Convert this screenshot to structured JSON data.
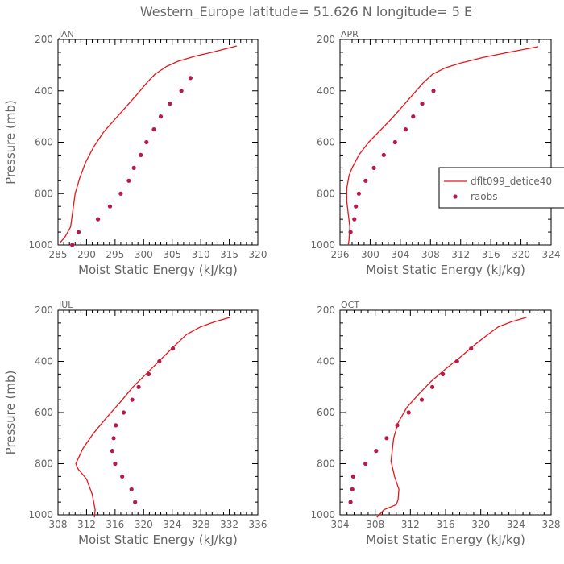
{
  "figure": {
    "title": "Western_Europe  latitude= 51.626 N longitude= 5 E",
    "colors": {
      "model": "#e8151a",
      "obs": "#b51c4a",
      "axes": "#000000",
      "text": "#666666"
    }
  },
  "legend": {
    "placement": "right of APR panel",
    "entries": [
      {
        "label": "dflt099_detice40",
        "style": "line"
      },
      {
        "label": "raobs",
        "style": "marker"
      }
    ]
  },
  "chart_data": [
    {
      "type": "line",
      "panel_label": "JAN",
      "xlabel": "Moist Static Energy (kJ/kg)",
      "ylabel": "Pressure (mb)",
      "xlim": [
        285,
        320
      ],
      "ylim": [
        1000,
        200
      ],
      "xticks": [
        285,
        290,
        295,
        300,
        305,
        310,
        315,
        320
      ],
      "yticks": [
        200,
        400,
        600,
        800,
        1000
      ],
      "series": [
        {
          "name": "dflt099_detice40",
          "style": "line",
          "x": [
            316.3,
            312,
            309,
            306,
            304,
            302,
            300.5,
            299,
            297,
            295,
            293,
            291.2,
            289.8,
            288.8,
            288,
            287.2,
            286.2,
            285.4
          ],
          "y": [
            225,
            250,
            265,
            285,
            305,
            335,
            370,
            410,
            460,
            510,
            560,
            620,
            680,
            740,
            800,
            930,
            970,
            990
          ]
        },
        {
          "name": "raobs",
          "style": "marker",
          "x": [
            308.2,
            306.6,
            304.6,
            303,
            301.8,
            300.5,
            299.5,
            298.3,
            297.4,
            296,
            294.1,
            292,
            288.6,
            287.5
          ],
          "y": [
            350,
            400,
            450,
            500,
            550,
            600,
            650,
            700,
            750,
            800,
            850,
            900,
            950,
            1000
          ]
        }
      ]
    },
    {
      "type": "line",
      "panel_label": "APR",
      "xlabel": "Moist Static Energy (kJ/kg)",
      "ylabel": "",
      "xlim": [
        296,
        324
      ],
      "ylim": [
        1000,
        200
      ],
      "xticks": [
        296,
        300,
        304,
        308,
        312,
        316,
        320,
        324
      ],
      "yticks": [
        200,
        400,
        600,
        800,
        1000
      ],
      "series": [
        {
          "name": "dflt099_detice40",
          "style": "line",
          "x": [
            322.3,
            318,
            315,
            312,
            310,
            308.3,
            307,
            305.8,
            304.3,
            302.8,
            301.3,
            299.8,
            298.5,
            297.6,
            297.2,
            296.9,
            296.9,
            297.1,
            297.3,
            297.2,
            297.1
          ],
          "y": [
            228,
            252,
            270,
            292,
            310,
            335,
            370,
            410,
            460,
            510,
            555,
            600,
            650,
            700,
            730,
            780,
            830,
            880,
            930,
            980,
            1000
          ]
        },
        {
          "name": "raobs",
          "style": "marker",
          "x": [
            308.4,
            306.9,
            305.7,
            304.7,
            303.3,
            301.8,
            300.5,
            299.4,
            298.5,
            298.1,
            297.9,
            297.4
          ],
          "y": [
            400,
            450,
            500,
            550,
            600,
            650,
            700,
            750,
            800,
            850,
            900,
            950
          ]
        }
      ]
    },
    {
      "type": "line",
      "panel_label": "JUL",
      "xlabel": "Moist Static Energy (kJ/kg)",
      "ylabel": "Pressure (mb)",
      "xlim": [
        308,
        336
      ],
      "ylim": [
        1000,
        200
      ],
      "xticks": [
        308,
        312,
        316,
        320,
        324,
        328,
        332,
        336
      ],
      "yticks": [
        200,
        400,
        600,
        800,
        1000
      ],
      "series": [
        {
          "name": "dflt099_detice40",
          "style": "line",
          "x": [
            332.1,
            330,
            328,
            326,
            324.5,
            322.5,
            320.5,
            318.5,
            316.7,
            314.8,
            313,
            311.5,
            310.5,
            310.8,
            312,
            312.8,
            313.2,
            313.1
          ],
          "y": [
            228,
            245,
            265,
            295,
            335,
            390,
            445,
            500,
            560,
            620,
            680,
            740,
            800,
            820,
            860,
            920,
            980,
            1010
          ]
        },
        {
          "name": "raobs",
          "style": "marker",
          "x": [
            324.1,
            322.2,
            320.7,
            319.3,
            318.4,
            317.2,
            316.1,
            315.8,
            315.6,
            316,
            317,
            318.3,
            318.8
          ],
          "y": [
            350,
            400,
            450,
            500,
            550,
            600,
            650,
            700,
            750,
            800,
            850,
            900,
            950
          ]
        }
      ]
    },
    {
      "type": "line",
      "panel_label": "OCT",
      "xlabel": "Moist Static Energy (kJ/kg)",
      "ylabel": "",
      "xlim": [
        304,
        328
      ],
      "ylim": [
        1000,
        200
      ],
      "xticks": [
        304,
        308,
        312,
        316,
        320,
        324,
        328
      ],
      "yticks": [
        200,
        400,
        600,
        800,
        1000
      ],
      "series": [
        {
          "name": "dflt099_detice40",
          "style": "line",
          "x": [
            325.2,
            323.5,
            322,
            321,
            319.5,
            317.8,
            316,
            314.3,
            312.9,
            311.6,
            310.6,
            310.1,
            309.8,
            310.2,
            310.7,
            310.6,
            310.4,
            309,
            308.2
          ],
          "y": [
            228,
            245,
            265,
            290,
            330,
            380,
            430,
            480,
            530,
            580,
            640,
            700,
            790,
            850,
            900,
            940,
            960,
            980,
            1010
          ]
        },
        {
          "name": "raobs",
          "style": "marker",
          "x": [
            318.9,
            317.3,
            315.7,
            314.5,
            313.3,
            311.8,
            310.5,
            309.3,
            308.1,
            306.9,
            305.5,
            305.4,
            305.2
          ],
          "y": [
            350,
            400,
            450,
            500,
            550,
            600,
            650,
            700,
            750,
            800,
            850,
            900,
            950
          ]
        }
      ]
    }
  ]
}
